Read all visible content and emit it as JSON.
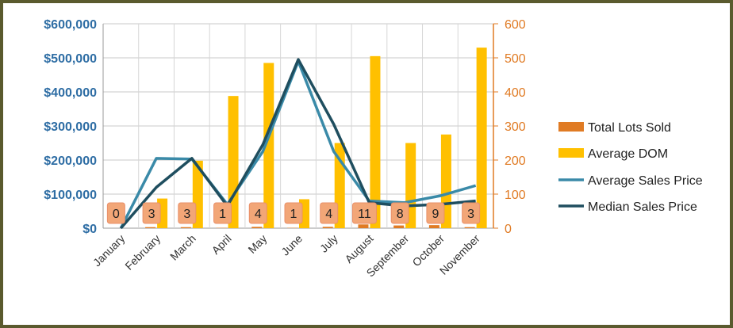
{
  "chart_data": {
    "type": "bar",
    "categories": [
      "January",
      "February",
      "March",
      "April",
      "May",
      "June",
      "July",
      "August",
      "September",
      "October",
      "November"
    ],
    "series": [
      {
        "name": "Total Lots Sold",
        "kind": "bar",
        "axis": "right",
        "color": "#e07b24",
        "values": [
          0,
          3,
          3,
          1,
          4,
          1,
          4,
          11,
          8,
          9,
          3
        ],
        "labels": [
          "0",
          "3",
          "3",
          "1",
          "4",
          "1",
          "4",
          "11",
          "8",
          "9",
          "3"
        ]
      },
      {
        "name": "Average DOM",
        "kind": "bar",
        "axis": "right",
        "color": "#ffc000",
        "values": [
          0,
          87,
          198,
          388,
          485,
          85,
          250,
          505,
          250,
          275,
          530
        ]
      },
      {
        "name": "Average Sales Price",
        "kind": "line",
        "axis": "left",
        "color": "#3a8aa8",
        "values": [
          0,
          205000,
          203000,
          70000,
          225000,
          490000,
          225000,
          80000,
          75000,
          95000,
          125000
        ]
      },
      {
        "name": "Median Sales Price",
        "kind": "line",
        "axis": "left",
        "color": "#1f4e5f",
        "values": [
          0,
          120000,
          205000,
          65000,
          245000,
          495000,
          305000,
          75000,
          65000,
          70000,
          80000
        ]
      }
    ],
    "left_axis": {
      "ylim": [
        0,
        600000
      ],
      "ticks": [
        "$0",
        "$100,000",
        "$200,000",
        "$300,000",
        "$400,000",
        "$500,000",
        "$600,000"
      ]
    },
    "right_axis": {
      "ylim": [
        0,
        600
      ],
      "ticks": [
        "0",
        "100",
        "200",
        "300",
        "400",
        "500",
        "600"
      ]
    },
    "grid": true,
    "legend": "right",
    "colors": {
      "left_axis_text": "#2e6da4",
      "right_axis_text": "#e07b24",
      "frame": "#5a5a2e"
    }
  }
}
